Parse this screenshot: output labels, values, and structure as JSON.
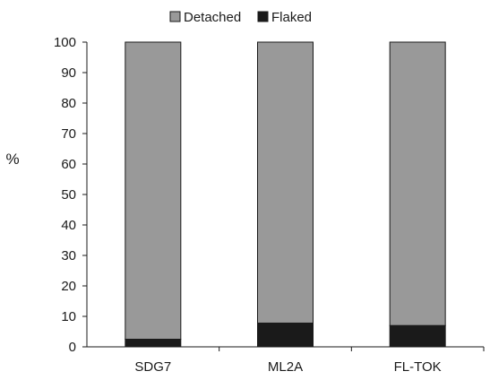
{
  "chart_data": {
    "type": "bar",
    "stacked": true,
    "categories": [
      "SDG7",
      "ML2A",
      "FL-TOK"
    ],
    "series": [
      {
        "name": "Flaked",
        "values": [
          2.5,
          7.8,
          7.0
        ],
        "color": "#1a1a1a"
      },
      {
        "name": "Detached",
        "values": [
          97.5,
          92.2,
          93.0
        ],
        "color": "#999999"
      }
    ],
    "legend_order": [
      "Detached",
      "Flaked"
    ],
    "legend_position": "top",
    "ylabel": "%",
    "xlabel": "",
    "ylim": [
      0,
      100
    ],
    "yticks": [
      0,
      10,
      20,
      30,
      40,
      50,
      60,
      70,
      80,
      90,
      100
    ],
    "grid": false
  }
}
